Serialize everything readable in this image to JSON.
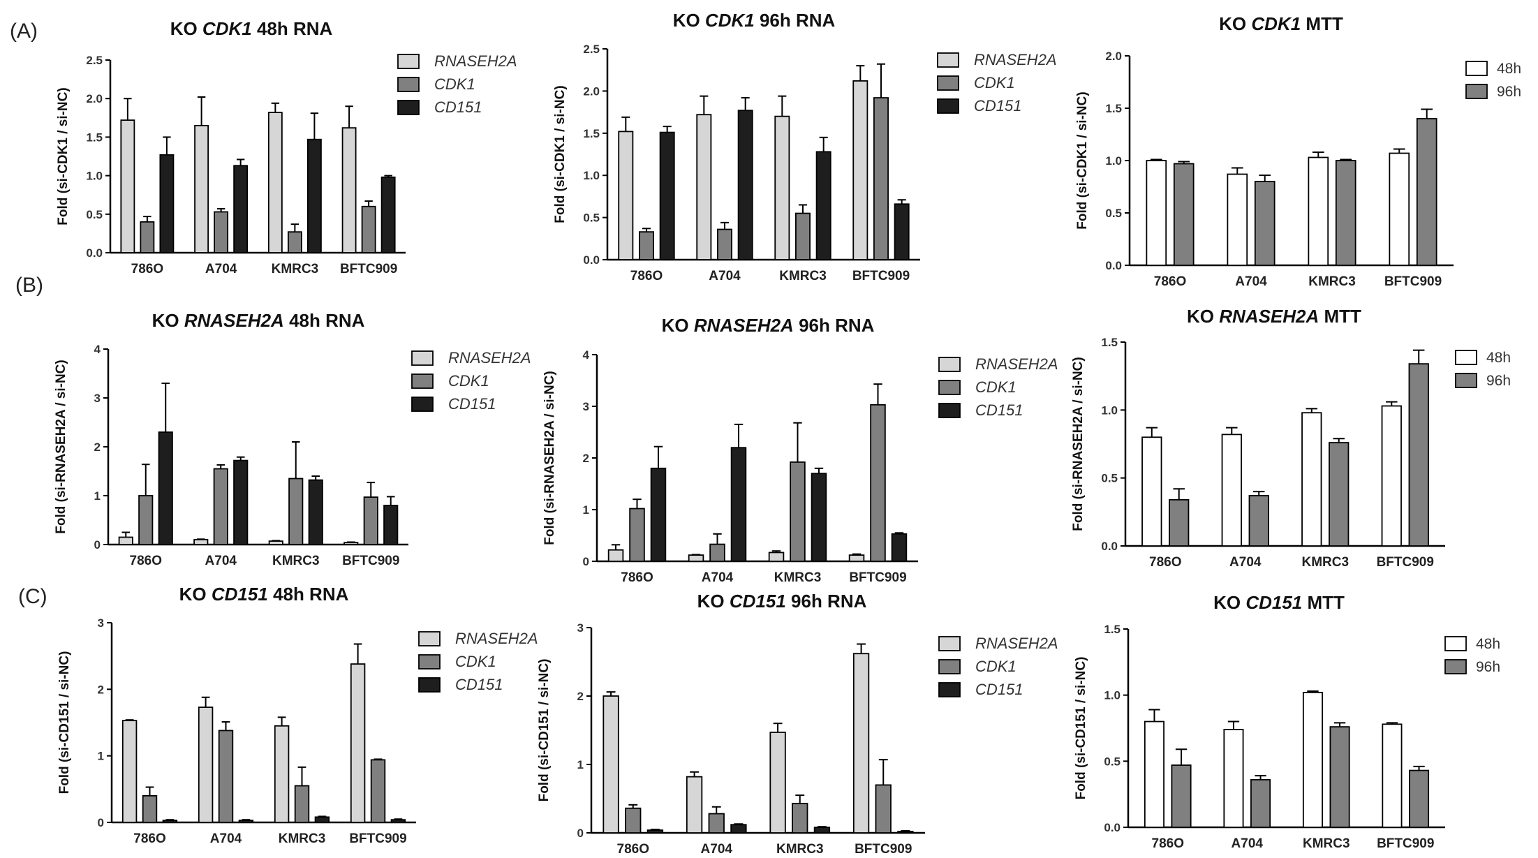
{
  "panel_labels": [
    "(A)",
    "(B)",
    "(C)"
  ],
  "legend_rna": [
    "RNASEH2A",
    "CDK1",
    "CD151"
  ],
  "legend_mtt": [
    "48h",
    "96h"
  ],
  "colors": {
    "RNASEH2A": "#d6d6d6",
    "CDK1": "#808080",
    "CD151": "#1e1e1e",
    "48h": "#ffffff",
    "96h": "#808080"
  },
  "chart_data": [
    {
      "type": "bar",
      "title_prefix": "KO",
      "title_gene": "CDK1",
      "title_suffix": "48h RNA",
      "ylabel": "Fold (si-CDK1 / si-NC)",
      "ylim": [
        0,
        2.5
      ],
      "yticks": [
        "0.0",
        "0.5",
        "1.0",
        "1.5",
        "2.0",
        "2.5"
      ],
      "categories": [
        "786O",
        "A704",
        "KMRC3",
        "BFTC909"
      ],
      "series": [
        {
          "name": "RNASEH2A",
          "values": [
            1.72,
            1.65,
            1.82,
            1.62
          ],
          "errors": [
            0.28,
            0.37,
            0.12,
            0.28
          ]
        },
        {
          "name": "CDK1",
          "values": [
            0.4,
            0.53,
            0.27,
            0.6
          ],
          "errors": [
            0.07,
            0.04,
            0.1,
            0.07
          ]
        },
        {
          "name": "CD151",
          "values": [
            1.27,
            1.13,
            1.47,
            0.98
          ],
          "errors": [
            0.23,
            0.08,
            0.34,
            0.02
          ]
        }
      ]
    },
    {
      "type": "bar",
      "title_prefix": "KO",
      "title_gene": "CDK1",
      "title_suffix": "96h RNA",
      "ylabel": "Fold (si-CDK1 / si-NC)",
      "ylim": [
        0,
        2.5
      ],
      "yticks": [
        "0.0",
        "0.5",
        "1.0",
        "1.5",
        "2.0",
        "2.5"
      ],
      "categories": [
        "786O",
        "A704",
        "KMRC3",
        "BFTC909"
      ],
      "series": [
        {
          "name": "RNASEH2A",
          "values": [
            1.52,
            1.72,
            1.7,
            2.12
          ],
          "errors": [
            0.17,
            0.22,
            0.24,
            0.18
          ]
        },
        {
          "name": "CDK1",
          "values": [
            0.33,
            0.36,
            0.55,
            1.92
          ],
          "errors": [
            0.04,
            0.08,
            0.1,
            0.4
          ]
        },
        {
          "name": "CD151",
          "values": [
            1.51,
            1.77,
            1.28,
            0.66
          ],
          "errors": [
            0.07,
            0.15,
            0.17,
            0.05
          ]
        }
      ]
    },
    {
      "type": "bar",
      "title_prefix": "KO",
      "title_gene": "CDK1",
      "title_suffix": "MTT",
      "ylabel": "Fold (si-CDK1 / si-NC)",
      "ylim": [
        0,
        2.0
      ],
      "yticks": [
        "0.0",
        "0.5",
        "1.0",
        "1.5",
        "2.0"
      ],
      "categories": [
        "786O",
        "A704",
        "KMRC3",
        "BFTC909"
      ],
      "series": [
        {
          "name": "48h",
          "values": [
            1.0,
            0.87,
            1.03,
            1.07
          ],
          "errors": [
            0.01,
            0.06,
            0.05,
            0.04
          ]
        },
        {
          "name": "96h",
          "values": [
            0.97,
            0.8,
            1.0,
            1.4
          ],
          "errors": [
            0.02,
            0.06,
            0.01,
            0.09
          ]
        }
      ]
    },
    {
      "type": "bar",
      "title_prefix": "KO",
      "title_gene": "RNASEH2A",
      "title_suffix": "48h RNA",
      "ylabel": "Fold (si-RNASEH2A / si-NC)",
      "ylim": [
        0,
        4
      ],
      "yticks": [
        "0",
        "1",
        "2",
        "3",
        "4"
      ],
      "categories": [
        "786O",
        "A704",
        "KMRC3",
        "BFTC909"
      ],
      "series": [
        {
          "name": "RNASEH2A",
          "values": [
            0.15,
            0.1,
            0.07,
            0.04
          ],
          "errors": [
            0.1,
            0.01,
            0.01,
            0.01
          ]
        },
        {
          "name": "CDK1",
          "values": [
            1.0,
            1.55,
            1.35,
            0.97
          ],
          "errors": [
            0.64,
            0.08,
            0.75,
            0.3
          ]
        },
        {
          "name": "CD151",
          "values": [
            2.3,
            1.72,
            1.32,
            0.8
          ],
          "errors": [
            1.0,
            0.07,
            0.08,
            0.18
          ]
        }
      ]
    },
    {
      "type": "bar",
      "title_prefix": "KO",
      "title_gene": "RNASEH2A",
      "title_suffix": "96h RNA",
      "ylabel": "Fold (si-RNASEH2A / si-NC)",
      "ylim": [
        0,
        4
      ],
      "yticks": [
        "0",
        "1",
        "2",
        "3",
        "4"
      ],
      "categories": [
        "786O",
        "A704",
        "KMRC3",
        "BFTC909"
      ],
      "series": [
        {
          "name": "RNASEH2A",
          "values": [
            0.22,
            0.12,
            0.17,
            0.12
          ],
          "errors": [
            0.1,
            0.01,
            0.03,
            0.02
          ]
        },
        {
          "name": "CDK1",
          "values": [
            1.02,
            0.33,
            1.92,
            3.03
          ],
          "errors": [
            0.18,
            0.2,
            0.76,
            0.4
          ]
        },
        {
          "name": "CD151",
          "values": [
            1.8,
            2.2,
            1.7,
            0.53
          ],
          "errors": [
            0.42,
            0.45,
            0.1,
            0.02
          ]
        }
      ]
    },
    {
      "type": "bar",
      "title_prefix": "KO",
      "title_gene": "RNASEH2A",
      "title_suffix": "MTT",
      "ylabel": "Fold (si-RNASEH2A / si-NC)",
      "ylim": [
        0,
        1.5
      ],
      "yticks": [
        "0.0",
        "0.5",
        "1.0",
        "1.5"
      ],
      "categories": [
        "786O",
        "A704",
        "KMRC3",
        "BFTC909"
      ],
      "series": [
        {
          "name": "48h",
          "values": [
            0.8,
            0.82,
            0.98,
            1.03
          ],
          "errors": [
            0.07,
            0.05,
            0.03,
            0.03
          ]
        },
        {
          "name": "96h",
          "values": [
            0.34,
            0.37,
            0.76,
            1.34
          ],
          "errors": [
            0.08,
            0.03,
            0.03,
            0.1
          ]
        }
      ]
    },
    {
      "type": "bar",
      "title_prefix": "KO",
      "title_gene": "CD151",
      "title_suffix": "48h RNA",
      "ylabel": "Fold (si-CD151 / si-NC)",
      "ylim": [
        0,
        3
      ],
      "yticks": [
        "0",
        "1",
        "2",
        "3"
      ],
      "categories": [
        "786O",
        "A704",
        "KMRC3",
        "BFTC909"
      ],
      "series": [
        {
          "name": "RNASEH2A",
          "values": [
            1.53,
            1.73,
            1.45,
            2.38
          ],
          "errors": [
            0.01,
            0.15,
            0.13,
            0.3
          ]
        },
        {
          "name": "CDK1",
          "values": [
            0.4,
            1.38,
            0.55,
            0.94
          ],
          "errors": [
            0.13,
            0.13,
            0.28,
            0.01
          ]
        },
        {
          "name": "CD151",
          "values": [
            0.03,
            0.03,
            0.08,
            0.04
          ],
          "errors": [
            0.01,
            0.01,
            0.01,
            0.01
          ]
        }
      ]
    },
    {
      "type": "bar",
      "title_prefix": "KO",
      "title_gene": "CD151",
      "title_suffix": "96h RNA",
      "ylabel": "Fold (si-CD151 / si-NC)",
      "ylim": [
        0,
        3
      ],
      "yticks": [
        "0",
        "1",
        "2",
        "3"
      ],
      "categories": [
        "786O",
        "A704",
        "KMRC3",
        "BFTC909"
      ],
      "series": [
        {
          "name": "RNASEH2A",
          "values": [
            2.0,
            0.82,
            1.47,
            2.62
          ],
          "errors": [
            0.06,
            0.07,
            0.13,
            0.14
          ]
        },
        {
          "name": "CDK1",
          "values": [
            0.36,
            0.28,
            0.43,
            0.7
          ],
          "errors": [
            0.05,
            0.1,
            0.12,
            0.37
          ]
        },
        {
          "name": "CD151",
          "values": [
            0.04,
            0.12,
            0.08,
            0.02
          ],
          "errors": [
            0.01,
            0.01,
            0.01,
            0.01
          ]
        }
      ]
    },
    {
      "type": "bar",
      "title_prefix": "KO",
      "title_gene": "CD151",
      "title_suffix": "MTT",
      "ylabel": "Fold (si-CD151 / si-NC)",
      "ylim": [
        0,
        1.5
      ],
      "yticks": [
        "0.0",
        "0.5",
        "1.0",
        "1.5"
      ],
      "categories": [
        "786O",
        "A704",
        "KMRC3",
        "BFTC909"
      ],
      "series": [
        {
          "name": "48h",
          "values": [
            0.8,
            0.74,
            1.02,
            0.78
          ],
          "errors": [
            0.09,
            0.06,
            0.01,
            0.01
          ]
        },
        {
          "name": "96h",
          "values": [
            0.47,
            0.36,
            0.76,
            0.43
          ],
          "errors": [
            0.12,
            0.03,
            0.03,
            0.03
          ]
        }
      ]
    }
  ]
}
